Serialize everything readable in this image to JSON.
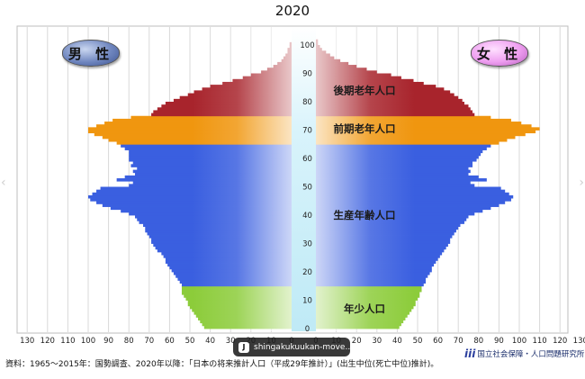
{
  "chart_data": {
    "type": "bar",
    "orientation": "horizontal-mirrored",
    "title": "2020",
    "left_label": "男 性",
    "right_label": "女 性",
    "x_unit": "population (10,000s) per single year of age",
    "x_ticks_left": [
      "130",
      "120",
      "110",
      "100",
      "90",
      "80",
      "70",
      "60",
      "50",
      "40",
      "30",
      "20",
      "10",
      "0"
    ],
    "x_ticks_right": [
      "0",
      "10",
      "20",
      "30",
      "40",
      "50",
      "60",
      "70",
      "80",
      "90",
      "100",
      "110",
      "120",
      "130"
    ],
    "y_ticks": [
      "0",
      "10",
      "20",
      "30",
      "40",
      "50",
      "60",
      "70",
      "80",
      "90",
      "100"
    ],
    "xlim": [
      0,
      130
    ],
    "ylim": [
      0,
      105
    ],
    "age_groups": [
      {
        "label": "年少人口",
        "from": 0,
        "to": 14,
        "color": "#8ccc3a"
      },
      {
        "label": "生産年齢人口",
        "from": 15,
        "to": 64,
        "color": "#3a5fe0"
      },
      {
        "label": "前期老年人口",
        "from": 65,
        "to": 74,
        "color": "#f0960f"
      },
      {
        "label": "後期老年人口",
        "from": 75,
        "to": 105,
        "color": "#a8242c"
      }
    ],
    "series": [
      {
        "name": "男 性",
        "ages": [
          0,
          1,
          2,
          3,
          4,
          5,
          6,
          7,
          8,
          9,
          10,
          11,
          12,
          13,
          14,
          15,
          16,
          17,
          18,
          19,
          20,
          21,
          22,
          23,
          24,
          25,
          26,
          27,
          28,
          29,
          30,
          31,
          32,
          33,
          34,
          35,
          36,
          37,
          38,
          39,
          40,
          41,
          42,
          43,
          44,
          45,
          46,
          47,
          48,
          49,
          50,
          51,
          52,
          53,
          54,
          55,
          56,
          57,
          58,
          59,
          60,
          61,
          62,
          63,
          64,
          65,
          66,
          67,
          68,
          69,
          70,
          71,
          72,
          73,
          74,
          75,
          76,
          77,
          78,
          79,
          80,
          81,
          82,
          83,
          84,
          85,
          86,
          87,
          88,
          89,
          90,
          91,
          92,
          93,
          94,
          95,
          96,
          97,
          98,
          99,
          100,
          101,
          102,
          103,
          104,
          105
        ],
        "values": [
          43,
          44,
          45,
          46,
          47,
          48,
          49,
          50,
          51,
          51,
          52,
          53,
          54,
          54,
          54,
          54,
          55,
          56,
          57,
          58,
          59,
          60,
          61,
          62,
          62,
          63,
          64,
          66,
          67,
          68,
          69,
          69,
          70,
          71,
          72,
          72,
          73,
          75,
          76,
          77,
          80,
          84,
          89,
          93,
          96,
          99,
          100,
          98,
          96,
          94,
          80,
          78,
          86,
          82,
          77,
          78,
          76,
          79,
          78,
          80,
          80,
          80,
          80,
          82,
          84,
          86,
          90,
          93,
          97,
          100,
          100,
          96,
          92,
          88,
          79,
          69,
          68,
          66,
          64,
          62,
          58,
          55,
          51,
          48,
          44,
          40,
          34,
          29,
          24,
          20,
          15,
          12,
          9,
          7,
          5,
          4,
          3,
          2,
          2,
          1,
          1,
          0,
          0,
          0,
          0,
          0
        ]
      },
      {
        "name": "女 性",
        "ages": [
          0,
          1,
          2,
          3,
          4,
          5,
          6,
          7,
          8,
          9,
          10,
          11,
          12,
          13,
          14,
          15,
          16,
          17,
          18,
          19,
          20,
          21,
          22,
          23,
          24,
          25,
          26,
          27,
          28,
          29,
          30,
          31,
          32,
          33,
          34,
          35,
          36,
          37,
          38,
          39,
          40,
          41,
          42,
          43,
          44,
          45,
          46,
          47,
          48,
          49,
          50,
          51,
          52,
          53,
          54,
          55,
          56,
          57,
          58,
          59,
          60,
          61,
          62,
          63,
          64,
          65,
          66,
          67,
          68,
          69,
          70,
          71,
          72,
          73,
          74,
          75,
          76,
          77,
          78,
          79,
          80,
          81,
          82,
          83,
          84,
          85,
          86,
          87,
          88,
          89,
          90,
          91,
          92,
          93,
          94,
          95,
          96,
          97,
          98,
          99,
          100,
          101,
          102,
          103,
          104,
          105
        ],
        "values": [
          41,
          42,
          43,
          44,
          45,
          46,
          47,
          48,
          49,
          49,
          50,
          51,
          51,
          52,
          52,
          53,
          54,
          54,
          55,
          56,
          57,
          57,
          58,
          59,
          60,
          61,
          62,
          63,
          64,
          65,
          66,
          66,
          67,
          68,
          69,
          70,
          71,
          73,
          74,
          75,
          78,
          82,
          86,
          90,
          93,
          96,
          97,
          95,
          93,
          91,
          78,
          76,
          84,
          80,
          75,
          76,
          75,
          77,
          77,
          79,
          80,
          81,
          82,
          84,
          86,
          90,
          94,
          98,
          103,
          108,
          110,
          106,
          101,
          96,
          86,
          78,
          77,
          76,
          75,
          73,
          72,
          70,
          68,
          66,
          63,
          59,
          53,
          48,
          42,
          37,
          30,
          25,
          20,
          16,
          12,
          9,
          7,
          5,
          3,
          2,
          1,
          1,
          0,
          0,
          0,
          0
        ]
      }
    ]
  },
  "source_text": "資料：1965〜2015年：国勢調査、2020年以降：「日本の将来推計人口（平成29年推計）」(出生中位(死亡中位)推計)。",
  "org_name": "国立社会保障・人口問題研究所",
  "org_logo": "ipss",
  "video_chip": {
    "icon": "J",
    "label": "shingakukuukan-move..."
  }
}
